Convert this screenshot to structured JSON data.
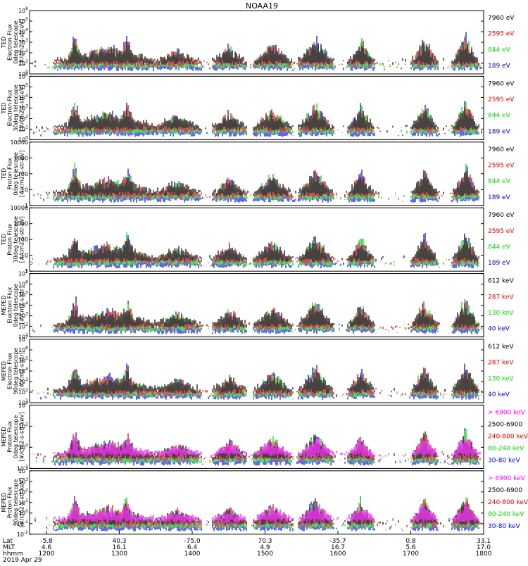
{
  "title": "NOAA19",
  "colors": {
    "black": "#000000",
    "red": "#e00000",
    "green": "#00dd00",
    "blue": "#0000e0",
    "magenta": "#ff00ff"
  },
  "footer": {
    "row_labels": [
      "Lat",
      "MLT",
      "hhmm",
      "2019 Apr 29"
    ],
    "lat": [
      "-5.8",
      "40.3",
      "-75.0",
      "70.3",
      "-35.7",
      "0.8",
      "33.1"
    ],
    "mlt": [
      "4.6",
      "16.1",
      "6.4",
      "4.9",
      "16.7",
      "5.6",
      "17.0"
    ],
    "hhmm": [
      "1200",
      "1300",
      "1400",
      "1500",
      "1600",
      "1700",
      "1800"
    ]
  },
  "chart_data": [
    {
      "type": "scatter",
      "ylabel": "TED Electron Flux 0deg telescope [#/cm2-s-str-eV]",
      "yscale": "log",
      "yticks": [
        "10^0",
        "10^1",
        "10^2",
        "10^3",
        "10^4",
        "10^5",
        "10^6"
      ],
      "legend": [
        {
          "label": "7960 eV",
          "color": "black"
        },
        {
          "label": "2595 eV",
          "color": "red"
        },
        {
          "label": "844 eV",
          "color": "green"
        },
        {
          "label": "189 eV",
          "color": "blue"
        }
      ]
    },
    {
      "type": "scatter",
      "ylabel": "TED Electron Flux 30deg telescope [#/cm2-s-str-eV]",
      "yscale": "log",
      "yticks": [
        "10^0",
        "10^1",
        "10^2",
        "10^3",
        "10^4",
        "10^5",
        "10^6"
      ],
      "legend": [
        {
          "label": "7960 eV",
          "color": "black"
        },
        {
          "label": "2595 eV",
          "color": "red"
        },
        {
          "label": "844 eV",
          "color": "green"
        },
        {
          "label": "189 eV",
          "color": "blue"
        }
      ]
    },
    {
      "type": "scatter",
      "ylabel": "TED Proton Flux 0deg telescope [#/cm2-s-str-eV]",
      "yscale": "log",
      "yticks": [
        "1",
        "10",
        "100",
        "1000",
        "10000"
      ],
      "legend": [
        {
          "label": "7960 eV",
          "color": "black"
        },
        {
          "label": "2595 eV",
          "color": "red"
        },
        {
          "label": "844 eV",
          "color": "green"
        },
        {
          "label": "189 eV",
          "color": "blue"
        }
      ]
    },
    {
      "type": "scatter",
      "ylabel": "TED Proton Flux 30deg telescope [#/cm2-s-str-eV]",
      "yscale": "log",
      "yticks": [
        "1",
        "10",
        "100",
        "1000",
        "10000"
      ],
      "legend": [
        {
          "label": "7960 eV",
          "color": "black"
        },
        {
          "label": "2595 eV",
          "color": "red"
        },
        {
          "label": "844 eV",
          "color": "green"
        },
        {
          "label": "189 eV",
          "color": "blue"
        }
      ]
    },
    {
      "type": "scatter",
      "ylabel": "MEPED Electron Flux 0deg telescope [#/cm2-s-str]",
      "yscale": "log",
      "yticks": [
        "10^1",
        "10^2",
        "10^3",
        "10^4",
        "10^5",
        "10^6",
        "10^7"
      ],
      "legend": [
        {
          "label": "612 keV",
          "color": "black"
        },
        {
          "label": "287 keV",
          "color": "red"
        },
        {
          "label": "130 keV",
          "color": "green"
        },
        {
          "label": "40 keV",
          "color": "blue"
        }
      ]
    },
    {
      "type": "scatter",
      "ylabel": "MEPED Electron Flux 90deg telescope [#/cm2-s-str]",
      "yscale": "log",
      "yticks": [
        "10^1",
        "10^2",
        "10^3",
        "10^4",
        "10^5",
        "10^6",
        "10^7"
      ],
      "legend": [
        {
          "label": "612 keV",
          "color": "black"
        },
        {
          "label": "287 keV",
          "color": "red"
        },
        {
          "label": "130 keV",
          "color": "green"
        },
        {
          "label": "40 keV",
          "color": "blue"
        }
      ]
    },
    {
      "type": "scatter",
      "ylabel": "MEPED Proton Flux 0deg telescope [#/cm2-s-str-keV]",
      "yscale": "log",
      "yticks": [
        "10^-2",
        "10^0",
        "10^2",
        "10^4"
      ],
      "legend": [
        {
          "label": "> 6900 keV",
          "color": "magenta"
        },
        {
          "label": "2500-6900",
          "color": "black"
        },
        {
          "label": "240-800 keV",
          "color": "red"
        },
        {
          "label": "80-240 keV",
          "color": "green"
        },
        {
          "label": "30-80 keV",
          "color": "blue"
        }
      ]
    },
    {
      "type": "scatter",
      "ylabel": "MEPED Proton Flux 90deg telescope [#/cm2-s-str-keV]",
      "yscale": "log",
      "yticks": [
        "10^-2",
        "10^-1",
        "10^0",
        "10^1",
        "10^2",
        "10^3",
        "10^4"
      ],
      "legend": [
        {
          "label": "> 6900 keV",
          "color": "magenta"
        },
        {
          "label": "2500-6900",
          "color": "black"
        },
        {
          "label": "240-800 keV",
          "color": "red"
        },
        {
          "label": "80-240 keV",
          "color": "green"
        },
        {
          "label": "30-80 keV",
          "color": "blue"
        }
      ]
    }
  ]
}
